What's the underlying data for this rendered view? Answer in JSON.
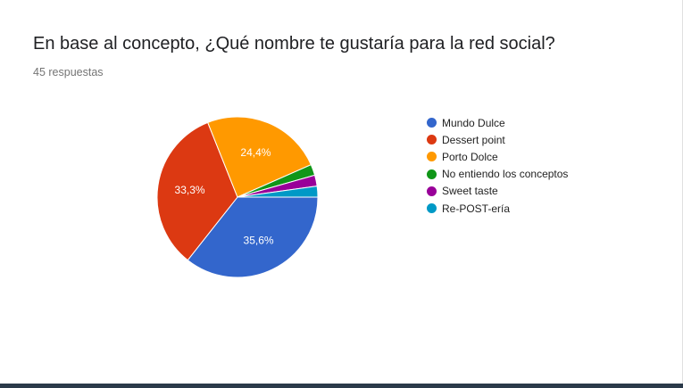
{
  "question": {
    "title": "En base al concepto, ¿Qué nombre te gustaría para la red social?",
    "responses": "45 respuestas"
  },
  "chart_data": {
    "type": "pie",
    "title": "En base al concepto, ¿Qué nombre te gustaría para la red social?",
    "legend_position": "right",
    "start_angle_deg": 90,
    "direction": "clockwise",
    "slices": [
      {
        "label": "Mundo Dulce",
        "value": 35.6,
        "display": "35,6%",
        "color": "#3366cc"
      },
      {
        "label": "Dessert point",
        "value": 33.3,
        "display": "33,3%",
        "color": "#dc3912"
      },
      {
        "label": "Porto Dolce",
        "value": 24.4,
        "display": "24,4%",
        "color": "#ff9900"
      },
      {
        "label": "No entiendo los conceptos",
        "value": 2.2,
        "display": "",
        "color": "#109618"
      },
      {
        "label": "Sweet taste",
        "value": 2.2,
        "display": "",
        "color": "#990099"
      },
      {
        "label": "Re-POST-ería",
        "value": 2.2,
        "display": "",
        "color": "#0099c6"
      }
    ]
  }
}
